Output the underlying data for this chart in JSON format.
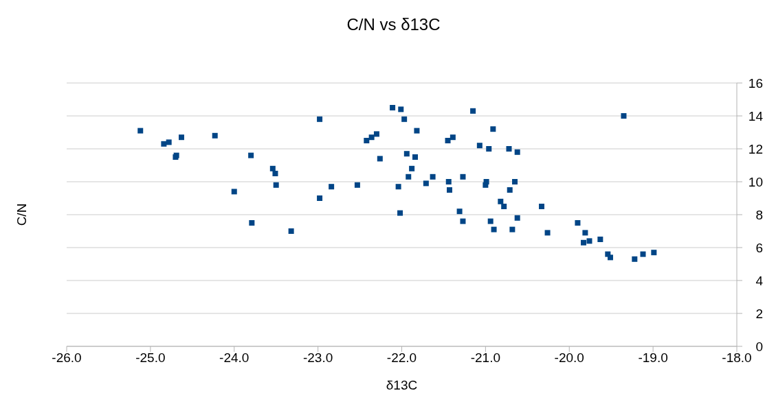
{
  "chart_data": {
    "type": "scatter",
    "title": "C/N vs δ13C",
    "xlabel": "δ13C",
    "ylabel": "C/N",
    "marker": "square",
    "grid": "y",
    "legend": false,
    "xlim": [
      -26,
      -18
    ],
    "xticks": [
      {
        "value": -26,
        "label": "-26.0"
      },
      {
        "value": -25,
        "label": "-25.0"
      },
      {
        "value": -24,
        "label": "-24.0"
      },
      {
        "value": -23,
        "label": "-23.0"
      },
      {
        "value": -22,
        "label": "-22.0"
      },
      {
        "value": -21,
        "label": "-21.0"
      },
      {
        "value": -20,
        "label": "-20.0"
      },
      {
        "value": -19,
        "label": "-19.0"
      },
      {
        "value": -18,
        "label": "-18.0"
      }
    ],
    "ylim": [
      0,
      16
    ],
    "yticks": [
      0,
      2,
      4,
      6,
      8,
      10,
      12,
      14,
      16
    ],
    "series": [
      {
        "color": "#004586",
        "x": [
          -25.12,
          -24.84,
          -24.78,
          -24.63,
          -24.69,
          -24.7,
          -24.23,
          -23.8,
          -24.0,
          -23.79,
          -23.54,
          -23.51,
          -23.5,
          -23.32,
          -22.98,
          -22.98,
          -22.84,
          -22.53,
          -22.11,
          -22.01,
          -21.97,
          -21.82,
          -22.42,
          -22.36,
          -22.3,
          -22.26,
          -21.94,
          -21.84,
          -21.88,
          -21.92,
          -22.04,
          -22.02,
          -21.63,
          -21.71,
          -21.44,
          -21.43,
          -21.27,
          -21.45,
          -21.39,
          -21.15,
          -20.91,
          -21.07,
          -20.96,
          -20.72,
          -20.62,
          -21.0,
          -20.99,
          -20.65,
          -20.71,
          -20.82,
          -20.78,
          -21.31,
          -21.27,
          -20.94,
          -20.9,
          -20.62,
          -20.68,
          -20.33,
          -20.26,
          -19.9,
          -19.81,
          -19.83,
          -19.76,
          -19.63,
          -19.54,
          -19.51,
          -19.22,
          -19.12,
          -18.99,
          -19.35
        ],
        "values": [
          13.1,
          12.3,
          12.4,
          12.7,
          11.6,
          11.5,
          12.8,
          11.6,
          9.4,
          7.5,
          10.8,
          10.5,
          9.8,
          7.0,
          13.8,
          9.0,
          9.7,
          9.8,
          14.5,
          14.4,
          13.8,
          13.1,
          12.5,
          12.7,
          12.9,
          11.4,
          11.7,
          11.5,
          10.8,
          10.3,
          9.7,
          8.1,
          10.3,
          9.9,
          10.0,
          9.5,
          10.3,
          12.5,
          12.7,
          14.3,
          13.2,
          12.2,
          12.0,
          12.0,
          11.8,
          9.8,
          10.0,
          10.0,
          9.5,
          8.8,
          8.5,
          8.2,
          7.6,
          7.6,
          7.1,
          7.8,
          7.1,
          8.5,
          6.9,
          7.5,
          6.9,
          6.3,
          6.4,
          6.5,
          5.6,
          5.4,
          5.3,
          5.6,
          5.7,
          14.0
        ]
      }
    ]
  }
}
